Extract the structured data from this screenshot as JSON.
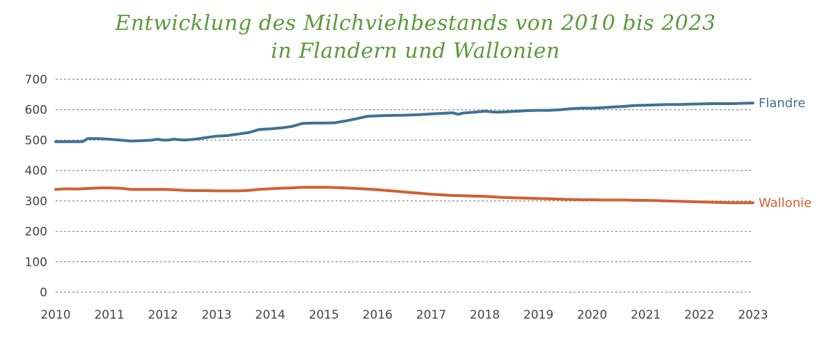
{
  "chart_data": {
    "type": "line",
    "title_line1": "Entwicklung des Milchviehbestands von 2010 bis 2023",
    "title_line2": "in Flandern und Wallonien",
    "xlabel": "",
    "ylabel": "",
    "ylim": [
      0,
      700
    ],
    "xlim": [
      2010,
      2023
    ],
    "y_ticks": [
      "0",
      "100",
      "200",
      "300",
      "400",
      "500",
      "600",
      "700"
    ],
    "x_ticks": [
      "2010",
      "2011",
      "2012",
      "2013",
      "2014",
      "2015",
      "2016",
      "2017",
      "2018",
      "2019",
      "2020",
      "2021",
      "2022",
      "2023"
    ],
    "grid": true,
    "legend": "line-end labels",
    "series": [
      {
        "name": "Flandre",
        "color": "#3f7194",
        "x": [
          2010.0,
          2010.1,
          2010.3,
          2010.5,
          2010.6,
          2010.8,
          2011.0,
          2011.2,
          2011.4,
          2011.6,
          2011.8,
          2011.9,
          2012.0,
          2012.1,
          2012.2,
          2012.4,
          2012.6,
          2012.8,
          2013.0,
          2013.2,
          2013.4,
          2013.6,
          2013.8,
          2014.0,
          2014.2,
          2014.4,
          2014.6,
          2014.8,
          2015.0,
          2015.2,
          2015.4,
          2015.6,
          2015.8,
          2016.0,
          2016.2,
          2016.5,
          2016.8,
          2017.0,
          2017.2,
          2017.4,
          2017.5,
          2017.6,
          2017.8,
          2018.0,
          2018.2,
          2018.4,
          2018.6,
          2018.8,
          2019.0,
          2019.2,
          2019.4,
          2019.6,
          2019.8,
          2020.0,
          2020.2,
          2020.4,
          2020.6,
          2020.8,
          2021.0,
          2021.2,
          2021.4,
          2021.6,
          2021.8,
          2022.0,
          2022.2,
          2022.4,
          2022.6,
          2022.8,
          2023.0
        ],
        "values": [
          495,
          495,
          495,
          495,
          505,
          505,
          503,
          500,
          497,
          498,
          500,
          503,
          500,
          500,
          503,
          500,
          503,
          508,
          513,
          515,
          520,
          525,
          535,
          537,
          540,
          545,
          555,
          556,
          556,
          557,
          563,
          570,
          578,
          580,
          581,
          582,
          584,
          586,
          588,
          590,
          585,
          589,
          592,
          595,
          592,
          593,
          595,
          597,
          598,
          598,
          600,
          603,
          605,
          605,
          607,
          609,
          611,
          614,
          615,
          616,
          617,
          617,
          618,
          619,
          620,
          620,
          620,
          621,
          622
        ]
      },
      {
        "name": "Wallonie",
        "color": "#d35f30",
        "x": [
          2010.0,
          2010.2,
          2010.4,
          2010.6,
          2010.8,
          2011.0,
          2011.2,
          2011.4,
          2011.6,
          2011.8,
          2012.0,
          2012.2,
          2012.4,
          2012.6,
          2012.8,
          2013.0,
          2013.2,
          2013.4,
          2013.6,
          2013.8,
          2014.0,
          2014.2,
          2014.4,
          2014.6,
          2014.8,
          2015.0,
          2015.2,
          2015.4,
          2015.6,
          2015.8,
          2016.0,
          2016.2,
          2016.4,
          2016.6,
          2016.8,
          2017.0,
          2017.2,
          2017.4,
          2017.6,
          2017.8,
          2018.0,
          2018.2,
          2018.4,
          2018.6,
          2018.8,
          2019.0,
          2019.2,
          2019.4,
          2019.6,
          2019.8,
          2020.0,
          2020.2,
          2020.4,
          2020.6,
          2020.8,
          2021.0,
          2021.2,
          2021.4,
          2021.6,
          2021.8,
          2022.0,
          2022.2,
          2022.4,
          2022.6,
          2022.8,
          2023.0
        ],
        "values": [
          338,
          340,
          339,
          341,
          343,
          343,
          342,
          338,
          338,
          338,
          338,
          337,
          335,
          334,
          334,
          333,
          333,
          333,
          335,
          338,
          340,
          342,
          343,
          345,
          345,
          345,
          344,
          343,
          341,
          339,
          337,
          334,
          331,
          328,
          325,
          322,
          320,
          318,
          317,
          316,
          315,
          313,
          311,
          310,
          309,
          308,
          307,
          306,
          305,
          304,
          304,
          303,
          303,
          303,
          302,
          302,
          301,
          300,
          299,
          298,
          297,
          296,
          295,
          294,
          294,
          294
        ]
      }
    ]
  }
}
